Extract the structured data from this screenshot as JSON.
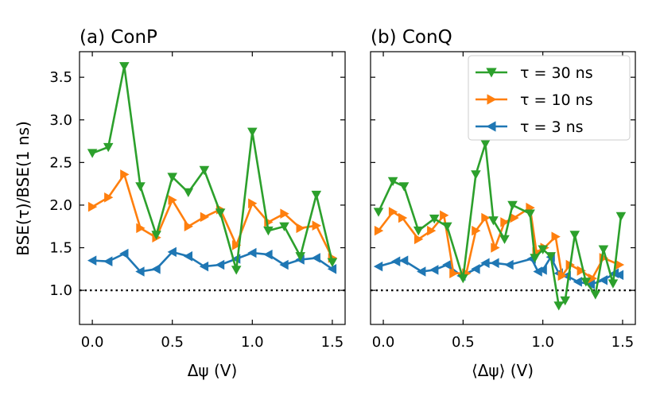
{
  "chart_data": [
    {
      "type": "line",
      "title": "(a) ConP",
      "xlabel": "Δψ (V)",
      "ylabel": "BSE(τ)/BSE(1 ns)",
      "xlim": [
        -0.08,
        1.58
      ],
      "ylim": [
        0.6,
        3.8
      ],
      "xticks": [
        0.0,
        0.5,
        1.0,
        1.5
      ],
      "xtick_labels": [
        "0.0",
        "0.5",
        "1.0",
        "1.5"
      ],
      "yticks": [
        1.0,
        1.5,
        2.0,
        2.5,
        3.0,
        3.5
      ],
      "ytick_labels": [
        "1.0",
        "1.5",
        "2.0",
        "2.5",
        "3.0",
        "3.5"
      ],
      "reference_line": 1.0,
      "series": [
        {
          "name": "τ = 3 ns",
          "color": "#1f77b4",
          "marker": "triangle-left",
          "x": [
            0.0,
            0.1,
            0.2,
            0.3,
            0.4,
            0.5,
            0.6,
            0.7,
            0.8,
            0.9,
            1.0,
            1.1,
            1.2,
            1.3,
            1.4,
            1.5
          ],
          "y": [
            1.35,
            1.34,
            1.43,
            1.22,
            1.25,
            1.45,
            1.4,
            1.28,
            1.3,
            1.37,
            1.44,
            1.42,
            1.3,
            1.36,
            1.38,
            1.25
          ]
        },
        {
          "name": "τ = 10 ns",
          "color": "#ff7f0e",
          "marker": "triangle-right",
          "x": [
            0.0,
            0.1,
            0.2,
            0.3,
            0.4,
            0.5,
            0.6,
            0.7,
            0.8,
            0.9,
            1.0,
            1.1,
            1.2,
            1.3,
            1.4,
            1.5
          ],
          "y": [
            1.98,
            2.09,
            2.36,
            1.73,
            1.62,
            2.06,
            1.75,
            1.86,
            1.95,
            1.53,
            2.02,
            1.8,
            1.9,
            1.73,
            1.76,
            1.38
          ]
        },
        {
          "name": "τ = 30 ns",
          "color": "#2ca02c",
          "marker": "triangle-down",
          "x": [
            0.0,
            0.1,
            0.2,
            0.3,
            0.4,
            0.5,
            0.6,
            0.7,
            0.8,
            0.9,
            1.0,
            1.1,
            1.2,
            1.3,
            1.4,
            1.5
          ],
          "y": [
            2.61,
            2.68,
            3.63,
            2.22,
            1.65,
            2.33,
            2.15,
            2.41,
            1.91,
            1.24,
            2.86,
            1.7,
            1.75,
            1.4,
            2.12,
            1.33
          ]
        }
      ]
    },
    {
      "type": "line",
      "title": "(b) ConQ",
      "xlabel": "⟨Δψ⟩ (V)",
      "ylabel": "",
      "xlim": [
        -0.08,
        1.58
      ],
      "ylim": [
        0.6,
        3.8
      ],
      "xticks": [
        0.0,
        0.5,
        1.0,
        1.5
      ],
      "xtick_labels": [
        "0.0",
        "0.5",
        "1.0",
        "1.5"
      ],
      "yticks": [
        1.0,
        1.5,
        2.0,
        2.5,
        3.0,
        3.5
      ],
      "reference_line": 1.0,
      "legend": "top-right",
      "series": [
        {
          "name": "τ = 3 ns",
          "color": "#1f77b4",
          "marker": "triangle-left",
          "x": [
            -0.03,
            0.08,
            0.13,
            0.24,
            0.32,
            0.4,
            0.49,
            0.58,
            0.64,
            0.7,
            0.79,
            0.93,
            0.97,
            1.0,
            1.05,
            1.1,
            1.15,
            1.22,
            1.3,
            1.38,
            1.45,
            1.48
          ],
          "y": [
            1.28,
            1.34,
            1.35,
            1.22,
            1.24,
            1.3,
            1.17,
            1.25,
            1.32,
            1.32,
            1.3,
            1.37,
            1.22,
            1.24,
            1.39,
            1.2,
            1.17,
            1.1,
            1.07,
            1.12,
            1.2,
            1.18
          ]
        },
        {
          "name": "τ = 10 ns",
          "color": "#ff7f0e",
          "marker": "triangle-right",
          "x": [
            -0.03,
            0.06,
            0.12,
            0.22,
            0.3,
            0.38,
            0.44,
            0.52,
            0.58,
            0.64,
            0.7,
            0.76,
            0.82,
            0.92,
            0.96,
            1.01,
            1.08,
            1.12,
            1.17,
            1.24,
            1.31,
            1.38,
            1.48
          ],
          "y": [
            1.7,
            1.92,
            1.85,
            1.6,
            1.7,
            1.88,
            1.2,
            1.2,
            1.7,
            1.85,
            1.5,
            1.8,
            1.85,
            1.97,
            1.45,
            1.5,
            1.63,
            1.17,
            1.3,
            1.23,
            1.14,
            1.38,
            1.3
          ]
        },
        {
          "name": "τ = 30 ns",
          "color": "#2ca02c",
          "marker": "triangle-down",
          "x": [
            -0.03,
            0.06,
            0.13,
            0.22,
            0.32,
            0.4,
            0.5,
            0.58,
            0.64,
            0.69,
            0.76,
            0.81,
            0.92,
            0.95,
            1.0,
            1.05,
            1.1,
            1.14,
            1.2,
            1.27,
            1.33,
            1.38,
            1.44,
            1.49
          ],
          "y": [
            1.92,
            2.28,
            2.22,
            1.7,
            1.84,
            1.75,
            1.14,
            2.36,
            2.72,
            1.82,
            1.6,
            2.0,
            1.9,
            1.38,
            1.48,
            1.4,
            0.82,
            0.88,
            1.65,
            1.1,
            0.95,
            1.48,
            1.08,
            1.87
          ]
        }
      ]
    }
  ]
}
